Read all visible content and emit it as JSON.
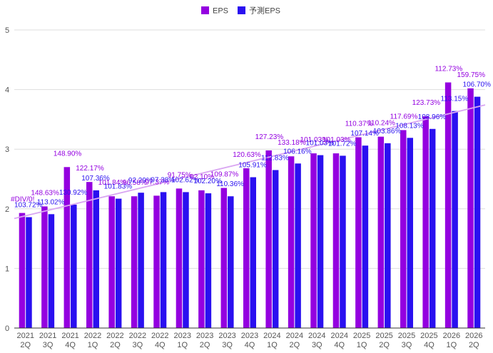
{
  "colors": {
    "eps": "#9400e0",
    "forecast": "#2a10f0",
    "trend": "#d9a6f2",
    "grid": "#dddddd",
    "axis": "#333333"
  },
  "chart_data": {
    "type": "bar",
    "title": "",
    "xlabel": "",
    "ylabel": "",
    "ylim": [
      0,
      5
    ],
    "yticks": [
      0,
      1,
      2,
      3,
      4,
      5
    ],
    "grid": true,
    "legend": "top-center",
    "trendline": true,
    "categories": [
      [
        "2021",
        "2Q"
      ],
      [
        "2021",
        "3Q"
      ],
      [
        "2021",
        "4Q"
      ],
      [
        "2022",
        "1Q"
      ],
      [
        "2022",
        "2Q"
      ],
      [
        "2022",
        "3Q"
      ],
      [
        "2022",
        "4Q"
      ],
      [
        "2023",
        "1Q"
      ],
      [
        "2023",
        "2Q"
      ],
      [
        "2023",
        "3Q"
      ],
      [
        "2023",
        "4Q"
      ],
      [
        "2024",
        "1Q"
      ],
      [
        "2024",
        "2Q"
      ],
      [
        "2024",
        "3Q"
      ],
      [
        "2024",
        "4Q"
      ],
      [
        "2025",
        "1Q"
      ],
      [
        "2025",
        "2Q"
      ],
      [
        "2025",
        "3Q"
      ],
      [
        "2025",
        "4Q"
      ],
      [
        "2026",
        "1Q"
      ],
      [
        "2026",
        "2Q"
      ]
    ],
    "series": [
      {
        "name": "EPS",
        "values": [
          1.93,
          2.04,
          2.7,
          2.45,
          2.21,
          2.21,
          2.22,
          2.34,
          2.31,
          2.35,
          2.68,
          2.98,
          2.88,
          2.93,
          2.93,
          3.2,
          3.21,
          3.32,
          3.55,
          4.12,
          4.02
        ],
        "labels": [
          "#DIV/0!",
          "148.63%",
          "148.90%",
          "122.17%",
          "101.84%",
          "96.58%",
          "97.37%",
          "91.75%",
          "92.10%",
          "109.87%",
          "120.63%",
          "127.23%",
          "133.18%",
          "101.03%",
          "101.03%",
          "110.37%",
          "110.24%",
          "117.69%",
          "123.73%",
          "112.73%",
          "159.75%"
        ]
      },
      {
        "name": "予測EPS",
        "values": [
          1.86,
          1.91,
          2.07,
          2.31,
          2.17,
          2.27,
          2.28,
          2.28,
          2.26,
          2.21,
          2.53,
          2.65,
          2.76,
          2.9,
          2.89,
          3.06,
          3.1,
          3.19,
          3.34,
          3.64,
          3.88
        ],
        "labels": [
          "103.72%",
          "113.02%",
          "130.92%",
          "107.36%",
          "101.83%",
          "92.29%",
          "97.38%",
          "102.62%",
          "102.20%",
          "110.36%",
          "105.91%",
          "112.83%",
          "106.16%",
          "101.03%",
          "101.72%",
          "107.14%",
          "103.86%",
          "108.13%",
          "108.96%",
          "113.15%",
          "106.70%"
        ]
      }
    ]
  }
}
